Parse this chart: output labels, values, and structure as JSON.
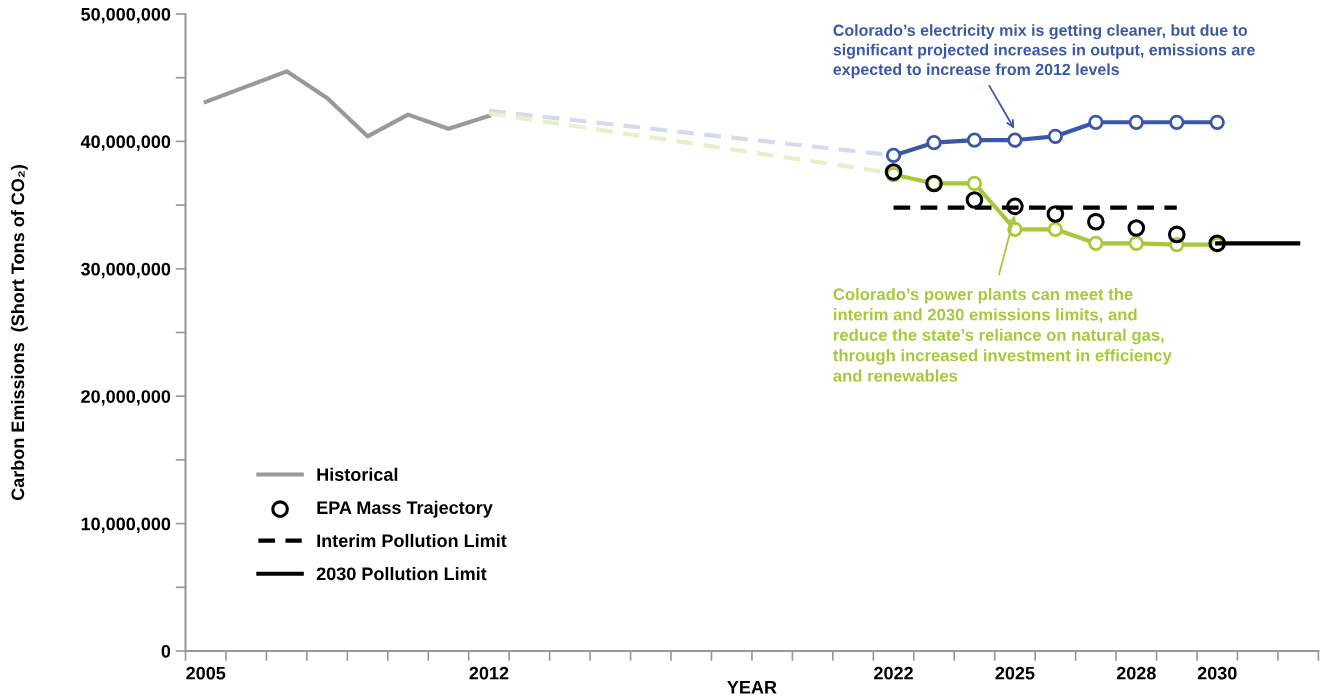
{
  "chart_data": {
    "type": "line",
    "xlabel": "YEAR",
    "ylabel": "Carbon Emissions  (Short Tons of CO₂)",
    "xlim": [
      2004.5,
      2032.5
    ],
    "xticks": [
      2005,
      2012,
      2022,
      2025,
      2028,
      2030,
      {
        "value": 2004.5,
        "label": null
      },
      {
        "value": 2005.5,
        "label": null
      },
      {
        "value": 2006.5,
        "label": null
      },
      {
        "value": 2007.5,
        "label": null
      },
      {
        "value": 2008.5,
        "label": null
      },
      {
        "value": 2009.5,
        "label": null
      },
      {
        "value": 2010.5,
        "label": null
      },
      {
        "value": 2011.5,
        "label": null
      },
      {
        "value": 2012.5,
        "label": null
      },
      {
        "value": 2013.5,
        "label": null
      },
      {
        "value": 2014.5,
        "label": null
      },
      {
        "value": 2015.5,
        "label": null
      },
      {
        "value": 2016.5,
        "label": null
      },
      {
        "value": 2017.5,
        "label": null
      },
      {
        "value": 2018.5,
        "label": null
      },
      {
        "value": 2019.5,
        "label": null
      },
      {
        "value": 2020.5,
        "label": null
      },
      {
        "value": 2021.5,
        "label": null
      },
      {
        "value": 2022.5,
        "label": null
      },
      {
        "value": 2023.5,
        "label": null
      },
      {
        "value": 2024.5,
        "label": null
      },
      {
        "value": 2025.5,
        "label": null
      },
      {
        "value": 2026.5,
        "label": null
      },
      {
        "value": 2027.5,
        "label": null
      },
      {
        "value": 2028.5,
        "label": null
      },
      {
        "value": 2029.5,
        "label": null
      },
      {
        "value": 2030.5,
        "label": null
      },
      {
        "value": 2031.5,
        "label": null
      },
      {
        "value": 2032.5,
        "label": null
      }
    ],
    "ylim": [
      0,
      50000000
    ],
    "yticks": [
      {
        "value": 0,
        "label": "0"
      },
      {
        "value": 10000000,
        "label": "10,000,000"
      },
      {
        "value": 20000000,
        "label": "20,000,000"
      },
      {
        "value": 30000000,
        "label": "30,000,000"
      },
      {
        "value": 40000000,
        "label": "40,000,000"
      },
      {
        "value": 50000000,
        "label": "50,000,000"
      },
      {
        "value": 5000000,
        "label": null
      },
      {
        "value": 15000000,
        "label": null
      },
      {
        "value": 25000000,
        "label": null
      },
      {
        "value": 35000000,
        "label": null
      },
      {
        "value": 45000000,
        "label": null
      }
    ],
    "grid": false,
    "legend": "bottom left",
    "series": [
      {
        "name": "Historical",
        "marker": "none",
        "line_style": "solid",
        "color": "#999999",
        "x": [
          2005,
          2006,
          2007,
          2008,
          2009,
          2010,
          2011,
          2012
        ],
        "values": [
          43100000,
          44300000,
          45500000,
          43400000,
          40400000,
          42100000,
          41000000,
          42000000
        ]
      },
      {
        "marker": "none",
        "line_style": "dashed",
        "color": "#d4dbec",
        "x": [
          2012,
          2022
        ],
        "values": [
          42400000,
          38900000
        ]
      },
      {
        "marker": "none",
        "line_style": "dashed",
        "color": "#e8f0c8",
        "x": [
          2012,
          2022
        ],
        "values": [
          42200000,
          37500000
        ]
      },
      {
        "marker": "circle",
        "line_style": "solid",
        "color": "#3a57a8",
        "x": [
          2022,
          2023,
          2024,
          2025,
          2026,
          2027,
          2028,
          2029,
          2030
        ],
        "values": [
          38900000,
          39900000,
          40100000,
          40100000,
          40400000,
          41500000,
          41500000,
          41500000,
          41500000
        ]
      },
      {
        "marker": "circle",
        "line_style": "solid",
        "color": "#a6c93a",
        "x": [
          2022,
          2023,
          2024,
          2025,
          2026,
          2027,
          2028,
          2029,
          2030
        ],
        "values": [
          37400000,
          36700000,
          36700000,
          33100000,
          33100000,
          32000000,
          32000000,
          31900000,
          31900000
        ]
      },
      {
        "name": "EPA Mass Trajectory",
        "type": "scatter",
        "marker": "circle",
        "color": "#000000",
        "x": [
          2022,
          2023,
          2024,
          2025,
          2026,
          2027,
          2028,
          2029,
          2030
        ],
        "values": [
          37600000,
          36700000,
          35400000,
          34900000,
          34300000,
          33700000,
          33200000,
          32700000,
          32000000
        ]
      },
      {
        "name": "Interim Pollution Limit",
        "marker": "none",
        "line_style": "dashed",
        "color": "#000000",
        "x": [
          2022,
          2029
        ],
        "values": [
          34800000,
          34800000
        ]
      },
      {
        "name": "2030 Pollution Limit",
        "marker": "none",
        "line_style": "solid",
        "color": "#000000",
        "x": [
          2030,
          2032
        ],
        "values": [
          32000000,
          32000000
        ]
      }
    ],
    "annotations": [
      {
        "text": "Colorado’s electricity mix is getting cleaner, but due to\nsignificant projected increases in output, emissions are\nexpected to increase from 2012 levels",
        "x": 2025,
        "y": 40900000
      },
      {
        "text": "Colorado’s power plants can meet the\ninterim and 2030 emissions limits, and\nreduce the state’s reliance on natural gas,\nthrough increased investment in efficiency\nand renewables",
        "x": 2025,
        "y": 34300000
      }
    ]
  }
}
